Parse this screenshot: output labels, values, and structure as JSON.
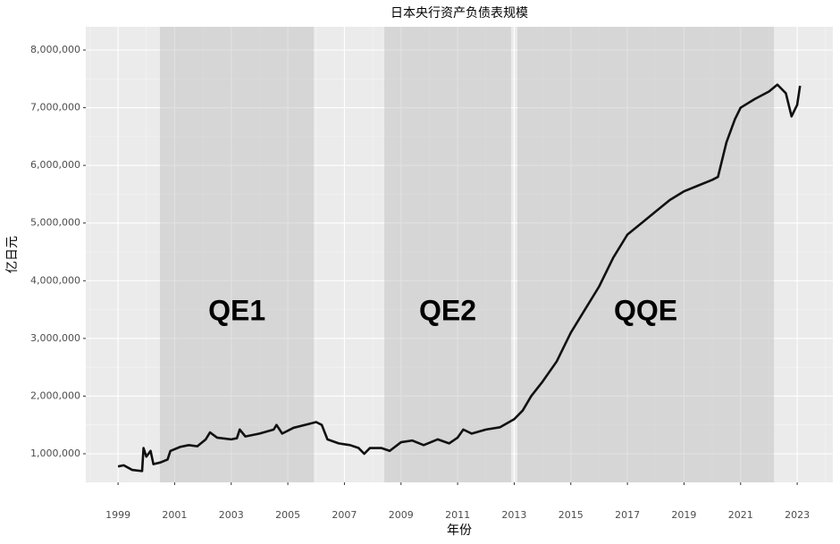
{
  "chart_data": {
    "type": "line",
    "title": "日本央行资产负债表规模",
    "x_label": "年份",
    "y_label": "亿日元",
    "color": "#111111",
    "x": [
      1999.0,
      1999.2,
      1999.5,
      1999.85,
      1999.9,
      2000.0,
      2000.15,
      2000.25,
      2000.5,
      2000.75,
      2000.85,
      2001.2,
      2001.5,
      2001.8,
      2002.1,
      2002.25,
      2002.5,
      2003.0,
      2003.2,
      2003.3,
      2003.5,
      2004.0,
      2004.5,
      2004.6,
      2004.8,
      2005.2,
      2005.6,
      2006.0,
      2006.2,
      2006.4,
      2006.8,
      2007.2,
      2007.5,
      2007.7,
      2007.9,
      2008.3,
      2008.6,
      2009.0,
      2009.4,
      2009.8,
      2010.3,
      2010.7,
      2011.0,
      2011.2,
      2011.5,
      2012.0,
      2012.5,
      2013.0,
      2013.3,
      2013.6,
      2014.0,
      2014.5,
      2015.0,
      2015.5,
      2016.0,
      2016.5,
      2017.0,
      2017.5,
      2018.0,
      2018.5,
      2019.0,
      2019.5,
      2020.0,
      2020.2,
      2020.5,
      2020.8,
      2021.0,
      2021.5,
      2022.0,
      2022.3,
      2022.6,
      2022.8,
      2023.0,
      2023.1
    ],
    "values": [
      780000,
      800000,
      720000,
      700000,
      1100000,
      950000,
      1050000,
      820000,
      850000,
      900000,
      1050000,
      1120000,
      1150000,
      1130000,
      1250000,
      1370000,
      1280000,
      1250000,
      1270000,
      1420000,
      1300000,
      1350000,
      1420000,
      1500000,
      1350000,
      1450000,
      1500000,
      1550000,
      1500000,
      1250000,
      1180000,
      1150000,
      1100000,
      1000000,
      1100000,
      1100000,
      1050000,
      1200000,
      1230000,
      1150000,
      1250000,
      1180000,
      1280000,
      1420000,
      1350000,
      1420000,
      1460000,
      1600000,
      1750000,
      2000000,
      2250000,
      2600000,
      3100000,
      3500000,
      3900000,
      4400000,
      4800000,
      5000000,
      5200000,
      5400000,
      5550000,
      5650000,
      5750000,
      5800000,
      6400000,
      6800000,
      7000000,
      7150000,
      7280000,
      7400000,
      7250000,
      6850000,
      7050000,
      7380000
    ],
    "regions": [
      {
        "label": "QE1",
        "start": 2000.48,
        "end": 2005.92
      },
      {
        "label": "QE2",
        "start": 2008.41,
        "end": 2012.89
      },
      {
        "label": "QQE",
        "start": 2013.11,
        "end": 2022.18
      }
    ],
    "xlim": [
      1997.86,
      2024.26
    ],
    "ylim": [
      504400,
      8402700
    ],
    "xticks": [
      1999,
      2001,
      2003,
      2005,
      2007,
      2009,
      2011,
      2013,
      2015,
      2017,
      2019,
      2021,
      2023
    ],
    "yticks": [
      {
        "value": 1000000,
        "label": "1,000,000"
      },
      {
        "value": 2000000,
        "label": "2,000,000"
      },
      {
        "value": 3000000,
        "label": "3,000,000"
      },
      {
        "value": 4000000,
        "label": "4,000,000"
      },
      {
        "value": 5000000,
        "label": "5,000,000"
      },
      {
        "value": 6000000,
        "label": "6,000,000"
      },
      {
        "value": 7000000,
        "label": "7,000,000"
      },
      {
        "value": 8000000,
        "label": "8,000,000"
      }
    ],
    "grid": true
  }
}
